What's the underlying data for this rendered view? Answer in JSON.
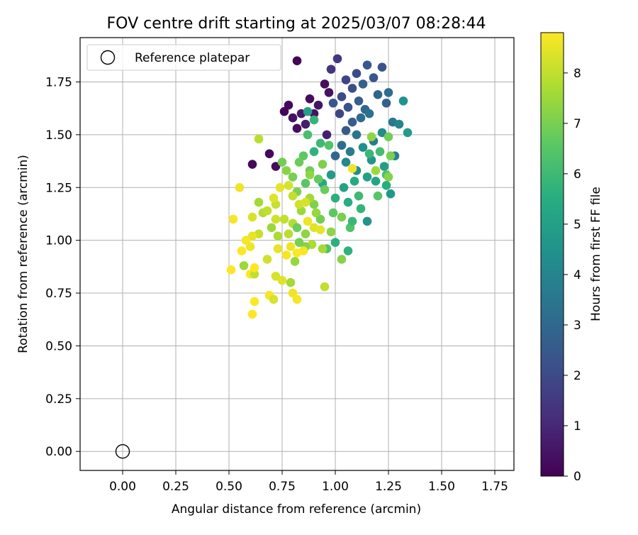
{
  "chart_data": {
    "type": "scatter",
    "title": "FOV centre drift starting at 2025/03/07 08:28:44",
    "xlabel": "Angular distance from reference (arcmin)",
    "ylabel": "Rotation from reference (arcmin)",
    "xlim": [
      -0.2,
      1.84
    ],
    "ylim": [
      -0.09,
      1.96
    ],
    "x_ticks": [
      "0.00",
      "0.25",
      "0.50",
      "0.75",
      "1.00",
      "1.25",
      "1.50",
      "1.75"
    ],
    "x_tick_values": [
      0,
      0.25,
      0.5,
      0.75,
      1.0,
      1.25,
      1.5,
      1.75
    ],
    "y_ticks": [
      "0.00",
      "0.25",
      "0.50",
      "0.75",
      "1.00",
      "1.25",
      "1.50",
      "1.75"
    ],
    "y_tick_values": [
      0,
      0.25,
      0.5,
      0.75,
      1.0,
      1.25,
      1.5,
      1.75
    ],
    "grid": true,
    "legend": {
      "position": "upper-left",
      "entries": [
        "Reference platepar"
      ]
    },
    "reference_point": {
      "x": 0.0,
      "y": 0.0
    },
    "colorbar": {
      "label": "Hours from first FF file",
      "colormap": "viridis",
      "range": [
        0,
        8.8
      ],
      "ticks": [
        "0",
        "1",
        "2",
        "3",
        "4",
        "5",
        "6",
        "7",
        "8"
      ],
      "tick_values": [
        0,
        1,
        2,
        3,
        4,
        5,
        6,
        7,
        8
      ]
    },
    "points": [
      [
        0.82,
        1.85,
        0.1
      ],
      [
        0.95,
        1.74,
        0.3
      ],
      [
        0.97,
        1.7,
        0.4
      ],
      [
        0.88,
        1.67,
        0.3
      ],
      [
        0.92,
        1.64,
        0.5
      ],
      [
        0.78,
        1.64,
        0.2
      ],
      [
        0.76,
        1.61,
        0.1
      ],
      [
        0.8,
        1.58,
        0.4
      ],
      [
        0.84,
        1.6,
        0.6
      ],
      [
        0.9,
        1.6,
        0.5
      ],
      [
        0.86,
        1.55,
        0.7
      ],
      [
        0.82,
        1.53,
        0.3
      ],
      [
        0.96,
        1.5,
        0.8
      ],
      [
        0.69,
        1.41,
        0.2
      ],
      [
        0.72,
        1.35,
        0.3
      ],
      [
        0.61,
        1.36,
        0.2
      ],
      [
        0.98,
        1.81,
        1.3
      ],
      [
        1.01,
        1.86,
        1.5
      ],
      [
        1.05,
        1.76,
        1.8
      ],
      [
        1.08,
        1.72,
        2.1
      ],
      [
        1.1,
        1.79,
        2.0
      ],
      [
        1.15,
        1.83,
        2.5
      ],
      [
        1.18,
        1.77,
        2.4
      ],
      [
        1.22,
        1.82,
        2.3
      ],
      [
        1.13,
        1.74,
        2.8
      ],
      [
        1.03,
        1.68,
        2.0
      ],
      [
        0.99,
        1.65,
        2.4
      ],
      [
        1.06,
        1.63,
        2.2
      ],
      [
        1.11,
        1.66,
        2.6
      ],
      [
        1.14,
        1.62,
        3.0
      ],
      [
        1.2,
        1.69,
        2.9
      ],
      [
        1.24,
        1.65,
        2.7
      ],
      [
        1.25,
        1.7,
        3.2
      ],
      [
        1.02,
        1.6,
        1.9
      ],
      [
        1.08,
        1.56,
        2.6
      ],
      [
        1.12,
        1.58,
        3.1
      ],
      [
        1.16,
        1.6,
        3.3
      ],
      [
        1.05,
        1.52,
        2.5
      ],
      [
        1.1,
        1.5,
        3.4
      ],
      [
        1.27,
        1.56,
        3.5
      ],
      [
        1.3,
        1.55,
        4.0
      ],
      [
        1.18,
        1.47,
        3.6
      ],
      [
        1.22,
        1.51,
        4.2
      ],
      [
        1.28,
        1.4,
        3.8
      ],
      [
        1.32,
        1.66,
        4.5
      ],
      [
        1.34,
        1.51,
        4.8
      ],
      [
        1.03,
        1.45,
        3.2
      ],
      [
        1.07,
        1.42,
        3.7
      ],
      [
        1.13,
        1.44,
        4.4
      ],
      [
        1.17,
        1.38,
        4.6
      ],
      [
        1.23,
        1.35,
        4.9
      ],
      [
        1.0,
        1.4,
        3.0
      ],
      [
        1.05,
        1.37,
        4.1
      ],
      [
        1.1,
        1.33,
        4.3
      ],
      [
        1.15,
        1.3,
        5.0
      ],
      [
        1.19,
        1.28,
        5.2
      ],
      [
        1.26,
        1.22,
        4.7
      ],
      [
        1.09,
        1.28,
        5.4
      ],
      [
        1.04,
        1.25,
        5.1
      ],
      [
        0.98,
        1.31,
        4.8
      ],
      [
        0.94,
        1.27,
        5.3
      ],
      [
        1.0,
        1.2,
        5.6
      ],
      [
        1.06,
        1.18,
        5.5
      ],
      [
        1.12,
        1.15,
        5.8
      ],
      [
        1.15,
        1.09,
        4.5
      ],
      [
        1.16,
        1.41,
        5.9
      ],
      [
        1.21,
        1.42,
        6.1
      ],
      [
        1.24,
        1.31,
        6.3
      ],
      [
        1.2,
        1.21,
        6.5
      ],
      [
        1.11,
        1.21,
        6.0
      ],
      [
        0.87,
        1.61,
        5.0
      ],
      [
        0.9,
        1.57,
        5.8
      ],
      [
        0.87,
        1.5,
        6.2
      ],
      [
        0.93,
        1.46,
        6.0
      ],
      [
        0.97,
        1.45,
        6.4
      ],
      [
        0.9,
        1.42,
        5.7
      ],
      [
        0.85,
        1.4,
        6.6
      ],
      [
        0.83,
        1.37,
        6.8
      ],
      [
        0.88,
        1.33,
        6.9
      ],
      [
        0.92,
        1.29,
        6.7
      ],
      [
        0.86,
        1.27,
        6.5
      ],
      [
        0.8,
        1.3,
        7.0
      ],
      [
        0.77,
        1.33,
        7.2
      ],
      [
        0.75,
        1.37,
        6.9
      ],
      [
        0.82,
        1.23,
        7.1
      ],
      [
        0.95,
        1.24,
        6.8
      ],
      [
        0.99,
        1.13,
        6.6
      ],
      [
        1.03,
        1.11,
        7.0
      ],
      [
        1.07,
        1.06,
        6.4
      ],
      [
        1.08,
        1.09,
        5.9
      ],
      [
        1.06,
        0.95,
        5.7
      ],
      [
        0.96,
        0.96,
        6.3
      ],
      [
        1.03,
        0.91,
        7.2
      ],
      [
        1.0,
        0.99,
        5.6
      ],
      [
        0.98,
        1.04,
        7.3
      ],
      [
        0.93,
        1.1,
        6.9
      ],
      [
        0.91,
        1.13,
        7.4
      ],
      [
        0.9,
        1.17,
        7.1
      ],
      [
        0.88,
        1.2,
        7.6
      ],
      [
        0.84,
        1.14,
        7.5
      ],
      [
        0.8,
        1.08,
        7.8
      ],
      [
        0.82,
        1.06,
        6.8
      ],
      [
        0.78,
        1.03,
        7.9
      ],
      [
        0.86,
        1.03,
        7.3
      ],
      [
        0.89,
        0.98,
        7.7
      ],
      [
        0.94,
        0.96,
        7.6
      ],
      [
        0.86,
        0.97,
        7.2
      ],
      [
        0.83,
        0.99,
        7.0
      ],
      [
        0.81,
        0.9,
        7.4
      ],
      [
        0.79,
        0.8,
        7.6
      ],
      [
        0.95,
        0.78,
        8.0
      ],
      [
        0.73,
        1.02,
        7.7
      ],
      [
        0.7,
        1.06,
        7.5
      ],
      [
        0.66,
        1.13,
        7.8
      ],
      [
        0.64,
        1.18,
        7.6
      ],
      [
        0.68,
        1.14,
        8.0
      ],
      [
        0.72,
        1.1,
        8.2
      ],
      [
        0.72,
        1.17,
        8.1
      ],
      [
        0.71,
        1.2,
        8.4
      ],
      [
        0.74,
        1.25,
        8.5
      ],
      [
        0.78,
        1.26,
        8.3
      ],
      [
        0.8,
        1.21,
        8.0
      ],
      [
        0.83,
        1.17,
        8.2
      ],
      [
        0.86,
        1.18,
        8.3
      ],
      [
        0.87,
        1.09,
        8.6
      ],
      [
        0.9,
        1.06,
        8.4
      ],
      [
        0.93,
        1.05,
        8.5
      ],
      [
        0.85,
        0.95,
        8.7
      ],
      [
        0.82,
        0.94,
        8.8
      ],
      [
        0.79,
        0.97,
        8.6
      ],
      [
        0.77,
        0.93,
        8.7
      ],
      [
        0.73,
        0.96,
        8.5
      ],
      [
        0.72,
        0.83,
        8.3
      ],
      [
        0.75,
        0.81,
        8.4
      ],
      [
        0.68,
        0.91,
        8.2
      ],
      [
        0.64,
        1.03,
        8.1
      ],
      [
        0.61,
        1.02,
        8.5
      ],
      [
        0.58,
        1.0,
        8.7
      ],
      [
        0.6,
        0.97,
        8.6
      ],
      [
        0.56,
        0.95,
        8.8
      ],
      [
        0.52,
        1.1,
        8.7
      ],
      [
        0.55,
        1.25,
        8.6
      ],
      [
        0.61,
        1.11,
        8.3
      ],
      [
        0.64,
        1.48,
        7.9
      ],
      [
        0.57,
        0.88,
        7.5
      ],
      [
        0.6,
        0.84,
        8.8
      ],
      [
        0.62,
        0.84,
        8.0
      ],
      [
        0.62,
        0.87,
        8.9
      ],
      [
        0.51,
        0.86,
        8.8
      ],
      [
        0.69,
        0.74,
        8.7
      ],
      [
        0.71,
        0.72,
        8.3
      ],
      [
        0.62,
        0.71,
        8.8
      ],
      [
        0.61,
        0.65,
        8.9
      ],
      [
        0.8,
        0.75,
        8.6
      ],
      [
        0.82,
        0.72,
        8.7
      ],
      [
        1.08,
        1.34,
        8.6
      ],
      [
        0.76,
        1.1,
        8.0
      ],
      [
        0.88,
        1.31,
        7.3
      ],
      [
        0.94,
        1.36,
        7.1
      ],
      [
        1.19,
        1.33,
        7.5
      ],
      [
        1.25,
        1.3,
        7.2
      ],
      [
        1.17,
        1.49,
        7.3
      ],
      [
        1.25,
        1.49,
        6.9
      ],
      [
        1.26,
        1.4,
        7.0
      ],
      [
        1.24,
        1.26,
        5.5
      ]
    ]
  }
}
